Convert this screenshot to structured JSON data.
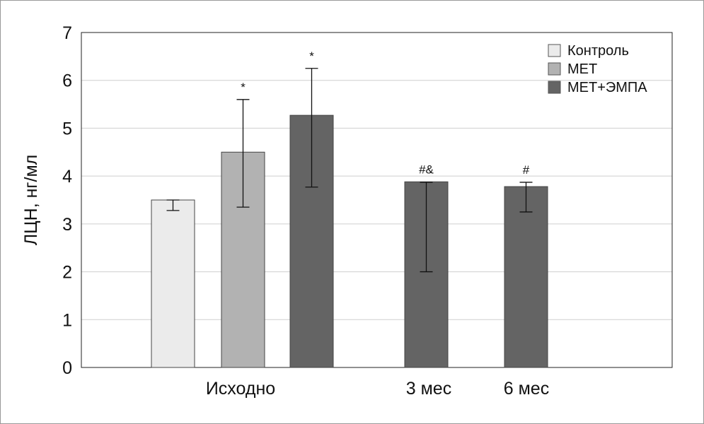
{
  "chart_data": {
    "type": "bar",
    "title": "",
    "xlabel": "",
    "ylabel": "ЛЦН, нг/мл",
    "ylim": [
      0,
      7
    ],
    "yticks": [
      0,
      1,
      2,
      3,
      4,
      5,
      6,
      7
    ],
    "grid": true,
    "legend_position": "top-right",
    "groups": [
      "Исходно",
      "3 мес",
      "6 мес"
    ],
    "series": [
      {
        "name": "Контроль",
        "color": "#ebebeb"
      },
      {
        "name": "МЕТ",
        "color": "#b2b2b2"
      },
      {
        "name": "МЕТ+ЭМПА",
        "color": "#646464"
      }
    ],
    "bars": [
      {
        "group": 0,
        "series": 0,
        "value": 3.5,
        "err_low": 3.28,
        "err_high": 3.5,
        "annotation": ""
      },
      {
        "group": 0,
        "series": 1,
        "value": 4.5,
        "err_low": 3.35,
        "err_high": 5.6,
        "annotation": "*"
      },
      {
        "group": 0,
        "series": 2,
        "value": 5.27,
        "err_low": 3.77,
        "err_high": 6.25,
        "annotation": "*"
      },
      {
        "group": 1,
        "series": 2,
        "value": 3.88,
        "err_low": 2.0,
        "err_high": 3.87,
        "annotation": "#&"
      },
      {
        "group": 2,
        "series": 2,
        "value": 3.78,
        "err_low": 3.25,
        "err_high": 3.87,
        "annotation": "#"
      }
    ]
  }
}
